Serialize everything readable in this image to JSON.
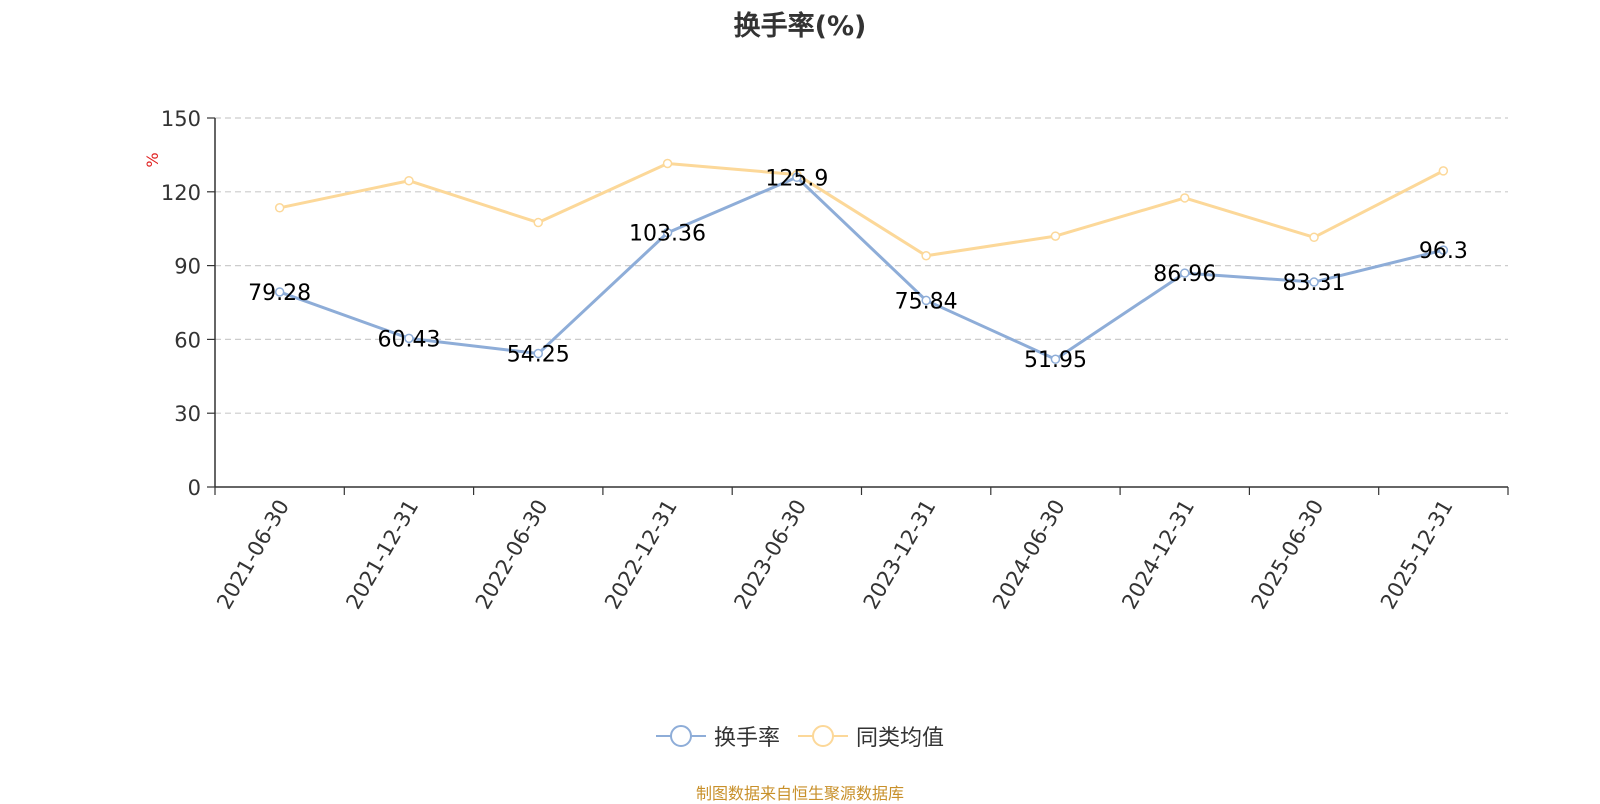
{
  "chart_data": {
    "type": "line",
    "title": "换手率(%)",
    "ylabel": "%",
    "categories": [
      "2021-06-30",
      "2021-12-31",
      "2022-06-30",
      "2022-12-31",
      "2023-06-30",
      "2023-12-31",
      "2024-06-30",
      "2024-12-31",
      "2025-06-30",
      "2025-12-31"
    ],
    "yticks": [
      0,
      30,
      60,
      90,
      120,
      150
    ],
    "ylim": [
      0,
      150
    ],
    "grid": true,
    "legend_position": "bottom",
    "series": [
      {
        "name": "换手率",
        "color": "#8eadd8",
        "values": [
          79.28,
          60.43,
          54.25,
          103.36,
          125.9,
          75.84,
          51.95,
          86.96,
          83.31,
          96.3
        ],
        "labels": [
          "79.28",
          "60.43",
          "54.25",
          "103.36",
          "125.9",
          "75.84",
          "51.95",
          "86.96",
          "83.31",
          "96.3"
        ]
      },
      {
        "name": "同类均值",
        "color": "#fcd899",
        "values": [
          113.5,
          124.5,
          107.5,
          131.5,
          127,
          94,
          102,
          117.5,
          101.5,
          128.5
        ]
      }
    ]
  },
  "source_note": "制图数据来自恒生聚源数据库"
}
